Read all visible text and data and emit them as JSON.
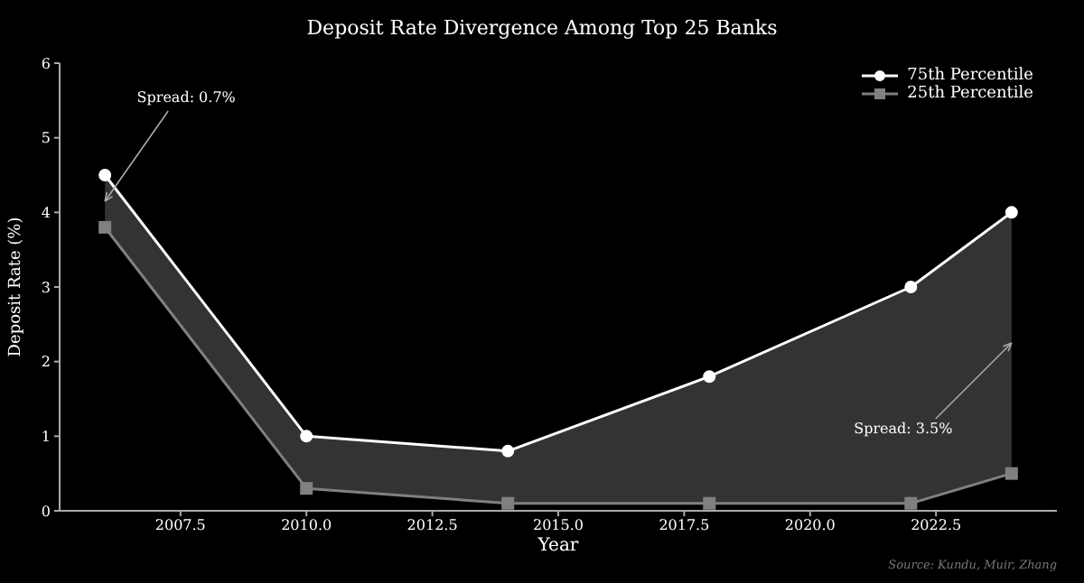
{
  "chart_data": {
    "type": "line",
    "title": "Deposit Rate Divergence Among Top 25 Banks",
    "xlabel": "Year",
    "ylabel": "Deposit Rate (%)",
    "x": [
      2006,
      2010,
      2014,
      2018,
      2022,
      2024
    ],
    "series": [
      {
        "name": "75th Percentile",
        "color": "#ffffff",
        "marker": "circle",
        "values": [
          4.5,
          1.0,
          0.8,
          1.8,
          3.0,
          4.0
        ],
        "lower": [
          3.8,
          0.3,
          0.1,
          0.1,
          0.1,
          0.5
        ],
        "upper": [
          4.5,
          1.0,
          0.8,
          1.8,
          3.0,
          4.0
        ]
      },
      {
        "name": "25th Percentile",
        "color": "#808080",
        "marker": "square",
        "values": [
          3.8,
          0.3,
          0.1,
          0.1,
          0.1,
          0.5
        ]
      }
    ],
    "xlim": [
      2005.1,
      2024.9
    ],
    "xticks": [
      2007.5,
      {
        "value": 2010,
        "label": "2010.0"
      },
      2012.5,
      {
        "value": 2015,
        "label": "2015.0"
      },
      2017.5,
      {
        "value": 2020,
        "label": "2020.0"
      },
      2022.5
    ],
    "ylim": [
      0,
      6
    ],
    "yticks": [
      0,
      1,
      2,
      3,
      4,
      5,
      6
    ],
    "legend": "top right",
    "annotations": [
      {
        "text": "Spread: 0.7%",
        "x": 2006,
        "y": 4.15
      },
      {
        "text": "Spread: 3.5%",
        "x": 2024,
        "y": 2.25
      },
      "Source: Kundu, Muir, Zhang"
    ]
  }
}
